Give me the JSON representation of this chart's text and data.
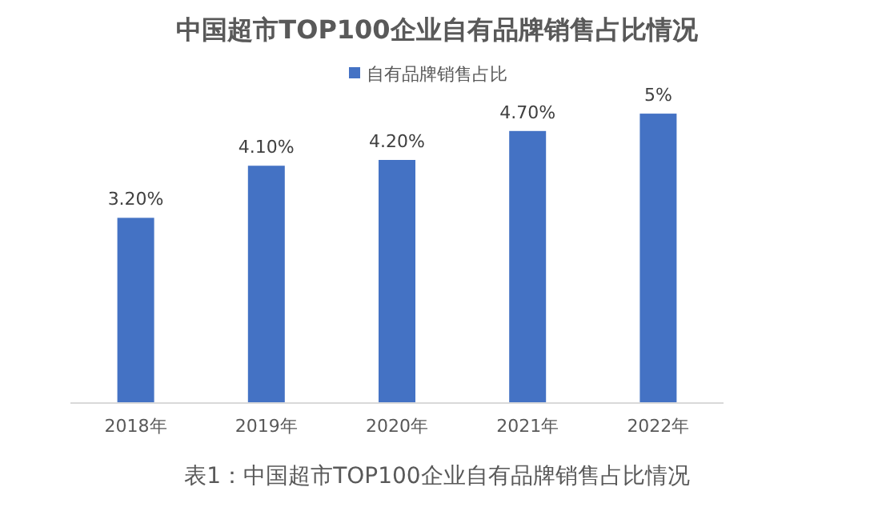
{
  "chart_data": {
    "type": "bar",
    "title": "中国超市TOP100企业自有品牌销售占比情况",
    "categories": [
      "2018年",
      "2019年",
      "2020年",
      "2021年",
      "2022年"
    ],
    "series": [
      {
        "name": "自有品牌销售占比",
        "color": "#4472c4",
        "values": [
          3.2,
          4.1,
          4.2,
          4.7,
          5
        ],
        "value_labels": [
          "3.20%",
          "4.10%",
          "4.20%",
          "4.70%",
          "5%"
        ]
      }
    ],
    "legend": "top",
    "annotations": [
      "表1：中国超市TOP100企业自有品牌销售占比情况"
    ]
  }
}
